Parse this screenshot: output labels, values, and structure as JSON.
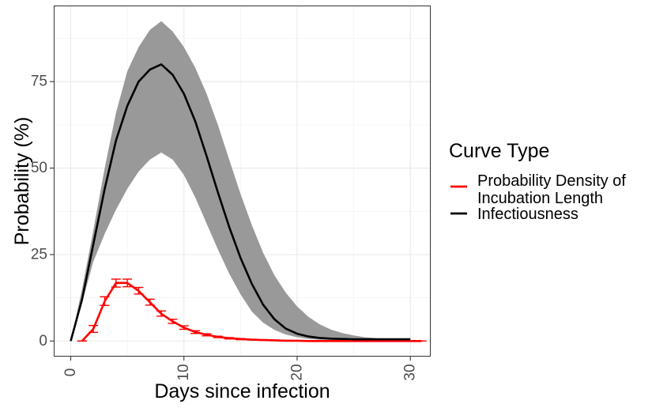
{
  "chart_data": {
    "type": "line",
    "xlabel": "Days since infection",
    "ylabel": "Probability (%)",
    "xlim": [
      -1.5,
      31.8
    ],
    "ylim": [
      -4.5,
      97
    ],
    "x_ticks": [
      0,
      10,
      20,
      30
    ],
    "x_tick_labels": [
      "0",
      "10",
      "20",
      "30"
    ],
    "y_ticks": [
      0,
      25,
      50,
      75
    ],
    "y_tick_labels": [
      "0",
      "25",
      "50",
      "75"
    ],
    "grid": true,
    "legend_title": "Curve Type",
    "legend_position": "right",
    "series": [
      {
        "name": "Probability Density of Incubation Length",
        "legend_lines": [
          "Probability Density of",
          "Incubation Length"
        ],
        "color": "#ff0000",
        "x": [
          1,
          2,
          3,
          4,
          5,
          6,
          7,
          8,
          9,
          10,
          11,
          12,
          13,
          14,
          15,
          16,
          17,
          18,
          19,
          20,
          21,
          22,
          23,
          24,
          25,
          26,
          27,
          28,
          29,
          30,
          31
        ],
        "y": [
          0,
          3.5,
          11.5,
          16.8,
          16.8,
          14.5,
          11.2,
          7.9,
          5.7,
          3.9,
          2.6,
          1.8,
          1.2,
          0.8,
          0.6,
          0.4,
          0.3,
          0.2,
          0.1,
          0.1,
          0,
          0,
          0,
          0,
          0,
          0,
          0,
          0,
          0,
          0,
          0
        ],
        "ci_lower": [
          0,
          2.5,
          10.3,
          15.6,
          15.7,
          13.6,
          10.4,
          7.2,
          5.1,
          3.4,
          2.2,
          1.5,
          1.0,
          0.6,
          0.4,
          0.3,
          0.2,
          0.1,
          0.1,
          0,
          0,
          0,
          0,
          0,
          0,
          0,
          0,
          0,
          0,
          0,
          0
        ],
        "ci_upper": [
          0,
          4.5,
          12.8,
          17.9,
          17.9,
          15.5,
          12.1,
          8.7,
          6.3,
          4.4,
          3.0,
          2.1,
          1.4,
          1.0,
          0.7,
          0.5,
          0.4,
          0.3,
          0.2,
          0.1,
          0,
          0,
          0,
          0,
          0,
          0,
          0,
          0,
          0,
          0,
          0
        ]
      },
      {
        "name": "Infectiousness",
        "legend_lines": [
          "Infectiousness"
        ],
        "color": "#000000",
        "band_color": "#999999",
        "x": [
          0,
          1,
          2,
          3,
          4,
          5,
          6,
          7,
          8,
          9,
          10,
          11,
          12,
          13,
          14,
          15,
          16,
          17,
          18,
          19,
          20,
          21,
          22,
          23,
          24,
          25,
          26,
          27,
          28,
          29,
          30
        ],
        "y": [
          0,
          12,
          28,
          44,
          58,
          68,
          75,
          78.5,
          80,
          77,
          71.5,
          63.5,
          53.5,
          43,
          33,
          24,
          16.5,
          10.5,
          6.3,
          3.6,
          2.1,
          1.3,
          0.9,
          0.7,
          0.6,
          0.5,
          0.5,
          0.5,
          0.5,
          0.5,
          0.5
        ],
        "band_upper": [
          0,
          15,
          32,
          50,
          66,
          78,
          85,
          90,
          92.5,
          89.5,
          85,
          79,
          71.5,
          62.5,
          52.5,
          42.5,
          33.5,
          25.5,
          19,
          14,
          10,
          7,
          4.8,
          3.3,
          2.3,
          1.6,
          1.1,
          0.8,
          0.5,
          0.3,
          0.2
        ],
        "band_lower": [
          0,
          11,
          23,
          31,
          38,
          44,
          49,
          52.5,
          54.5,
          52.5,
          48,
          41.5,
          34,
          26.5,
          19.5,
          13.5,
          8.5,
          5.3,
          3.2,
          1.9,
          1.1,
          0.6,
          0.4,
          0.3,
          0.2,
          0.1,
          0.1,
          0.1,
          0.1,
          0,
          0
        ]
      }
    ]
  }
}
